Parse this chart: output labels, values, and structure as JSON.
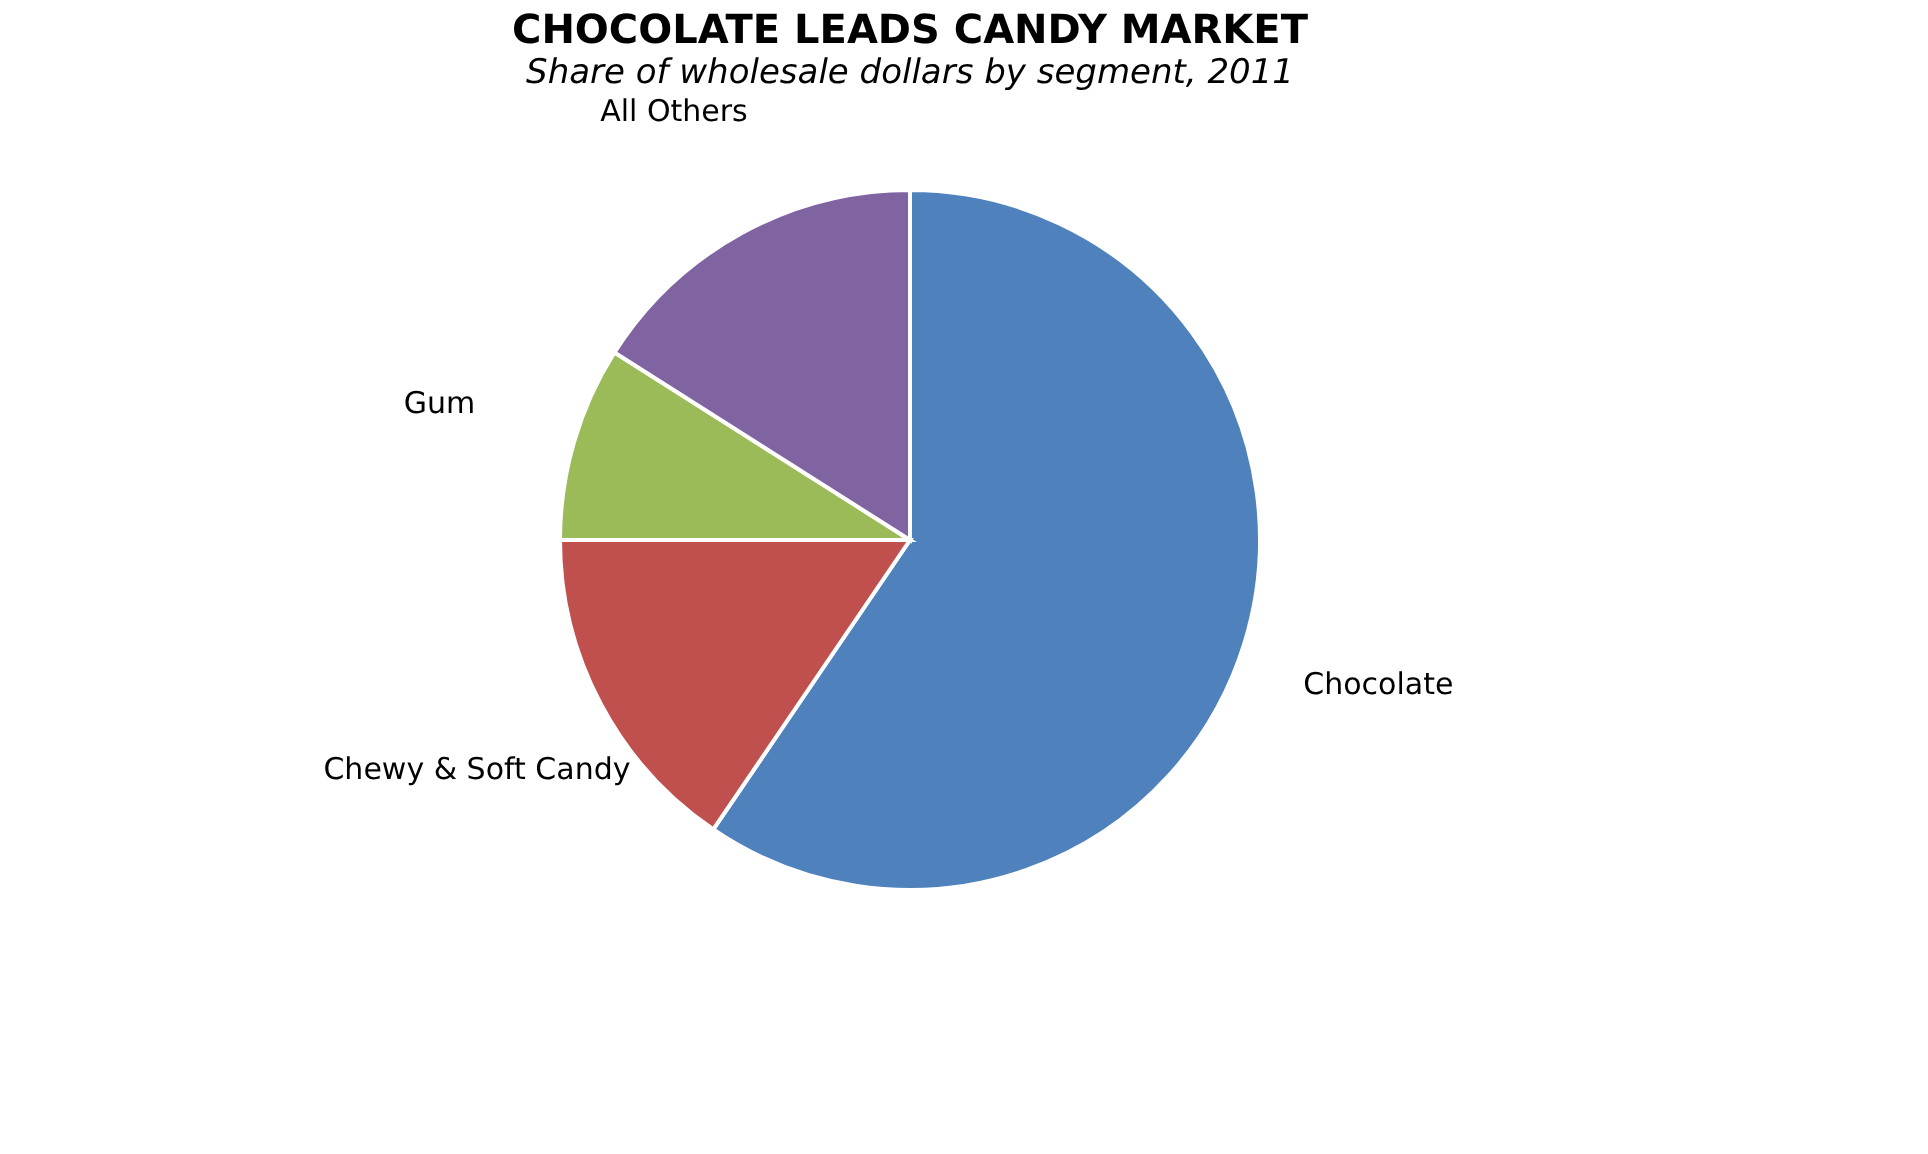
{
  "chart_data": {
    "type": "pie",
    "title": "CHOCOLATE LEADS CANDY MARKET",
    "subtitle": "Share of wholesale dollars by segment, 2011",
    "categories": [
      "Chocolate",
      "Chewy & Soft Candy",
      "Gum",
      "All Others"
    ],
    "values": [
      59.5,
      15.5,
      9,
      16
    ],
    "colors": [
      "#4f81bd",
      "#c0504d",
      "#9bbb59",
      "#8064a2"
    ],
    "legend": false
  }
}
